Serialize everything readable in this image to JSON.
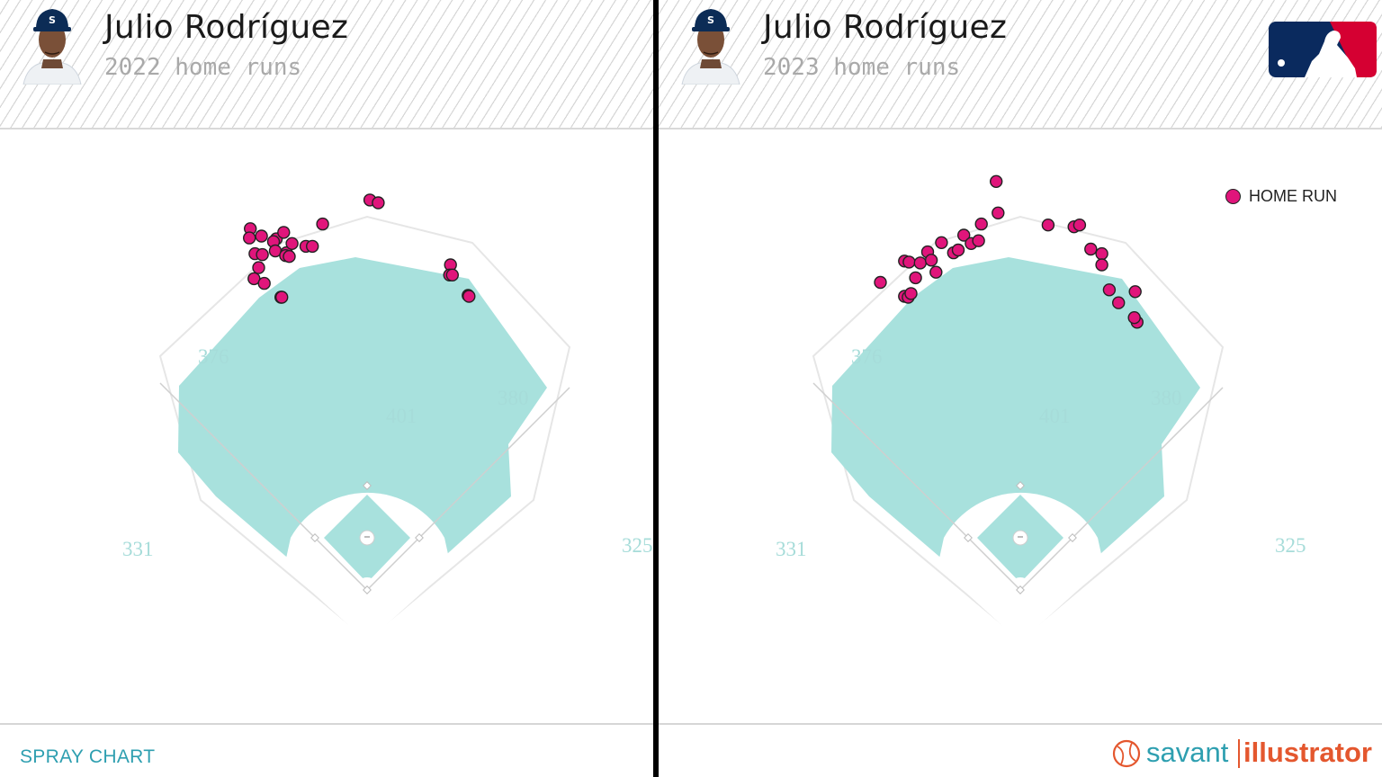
{
  "colors": {
    "grass": "#a8e1dd",
    "warning_track": "#ffffff",
    "outline": "#e6e6e6",
    "infield_dirt": "#ffffff",
    "home_run_dot": "#e0157b",
    "distance_label": "#a6dcd9",
    "footer_label": "#2e9fb0",
    "brand_savant": "#2e9fb0",
    "brand_illustrator": "#e4572e"
  },
  "panels": [
    {
      "player_name": "Julio Rodríguez",
      "subtitle": "2022 home runs",
      "headshot_icon": "player-headshot-icon",
      "footer_label": "SPRAY CHART"
    },
    {
      "player_name": "Julio Rodríguez",
      "subtitle": "2023 home runs",
      "headshot_icon": "player-headshot-icon",
      "logo_icon": "mlb-logo-icon",
      "legend_label": "HOME RUN",
      "brand_savant": "savant",
      "brand_illustrator": "illustrator",
      "brand_icon": "baseball-icon"
    }
  ],
  "chart_data": [
    {
      "type": "scatter",
      "title": "2022 home runs",
      "series": [
        {
          "name": "HOME RUN"
        }
      ],
      "distance_markers": [
        {
          "text": "331",
          "position": "left field line"
        },
        {
          "text": "376",
          "position": "left-center"
        },
        {
          "text": "401",
          "position": "center"
        },
        {
          "text": "380",
          "position": "right-center"
        },
        {
          "text": "325",
          "position": "right field line"
        }
      ],
      "points": [
        [
          -126,
          390
        ],
        [
          -127,
          380
        ],
        [
          -114,
          382
        ],
        [
          -121,
          363
        ],
        [
          -113,
          362
        ],
        [
          -117,
          348
        ],
        [
          -122,
          336
        ],
        [
          -111,
          331
        ],
        [
          -98,
          379
        ],
        [
          -90,
          386
        ],
        [
          -101,
          376
        ],
        [
          -99,
          366
        ],
        [
          -87,
          364
        ],
        [
          -88,
          361
        ],
        [
          -84,
          360
        ],
        [
          -81,
          374
        ],
        [
          -93,
          316
        ],
        [
          -92,
          316
        ],
        [
          -48,
          395
        ],
        [
          -66,
          371
        ],
        [
          -59,
          371
        ],
        [
          3,
          421
        ],
        [
          12,
          418
        ],
        [
          90,
          351
        ],
        [
          89,
          340
        ],
        [
          92,
          340
        ],
        [
          109,
          318
        ],
        [
          110,
          317
        ]
      ]
    },
    {
      "type": "scatter",
      "title": "2023 home runs",
      "series": [
        {
          "name": "HOME RUN"
        }
      ],
      "distance_markers": [
        {
          "text": "331",
          "position": "left field line"
        },
        {
          "text": "376",
          "position": "left-center"
        },
        {
          "text": "401",
          "position": "center"
        },
        {
          "text": "380",
          "position": "right-center"
        },
        {
          "text": "325",
          "position": "right field line"
        }
      ],
      "points": [
        [
          -151,
          332
        ],
        [
          -125,
          317
        ],
        [
          -121,
          316
        ],
        [
          -125,
          355
        ],
        [
          -120,
          354
        ],
        [
          -108,
          353
        ],
        [
          -118,
          320
        ],
        [
          -113,
          337
        ],
        [
          -100,
          365
        ],
        [
          -96,
          356
        ],
        [
          -91,
          343
        ],
        [
          -85,
          375
        ],
        [
          -72,
          364
        ],
        [
          -67,
          367
        ],
        [
          -61,
          383
        ],
        [
          -53,
          374
        ],
        [
          -42,
          395
        ],
        [
          -45,
          377
        ],
        [
          -24,
          407
        ],
        [
          -26,
          441
        ],
        [
          30,
          394
        ],
        [
          58,
          392
        ],
        [
          64,
          394
        ],
        [
          76,
          368
        ],
        [
          88,
          363
        ],
        [
          88,
          351
        ],
        [
          96,
          324
        ],
        [
          106,
          310
        ],
        [
          124,
          322
        ],
        [
          126,
          289
        ],
        [
          123,
          294
        ]
      ]
    }
  ]
}
